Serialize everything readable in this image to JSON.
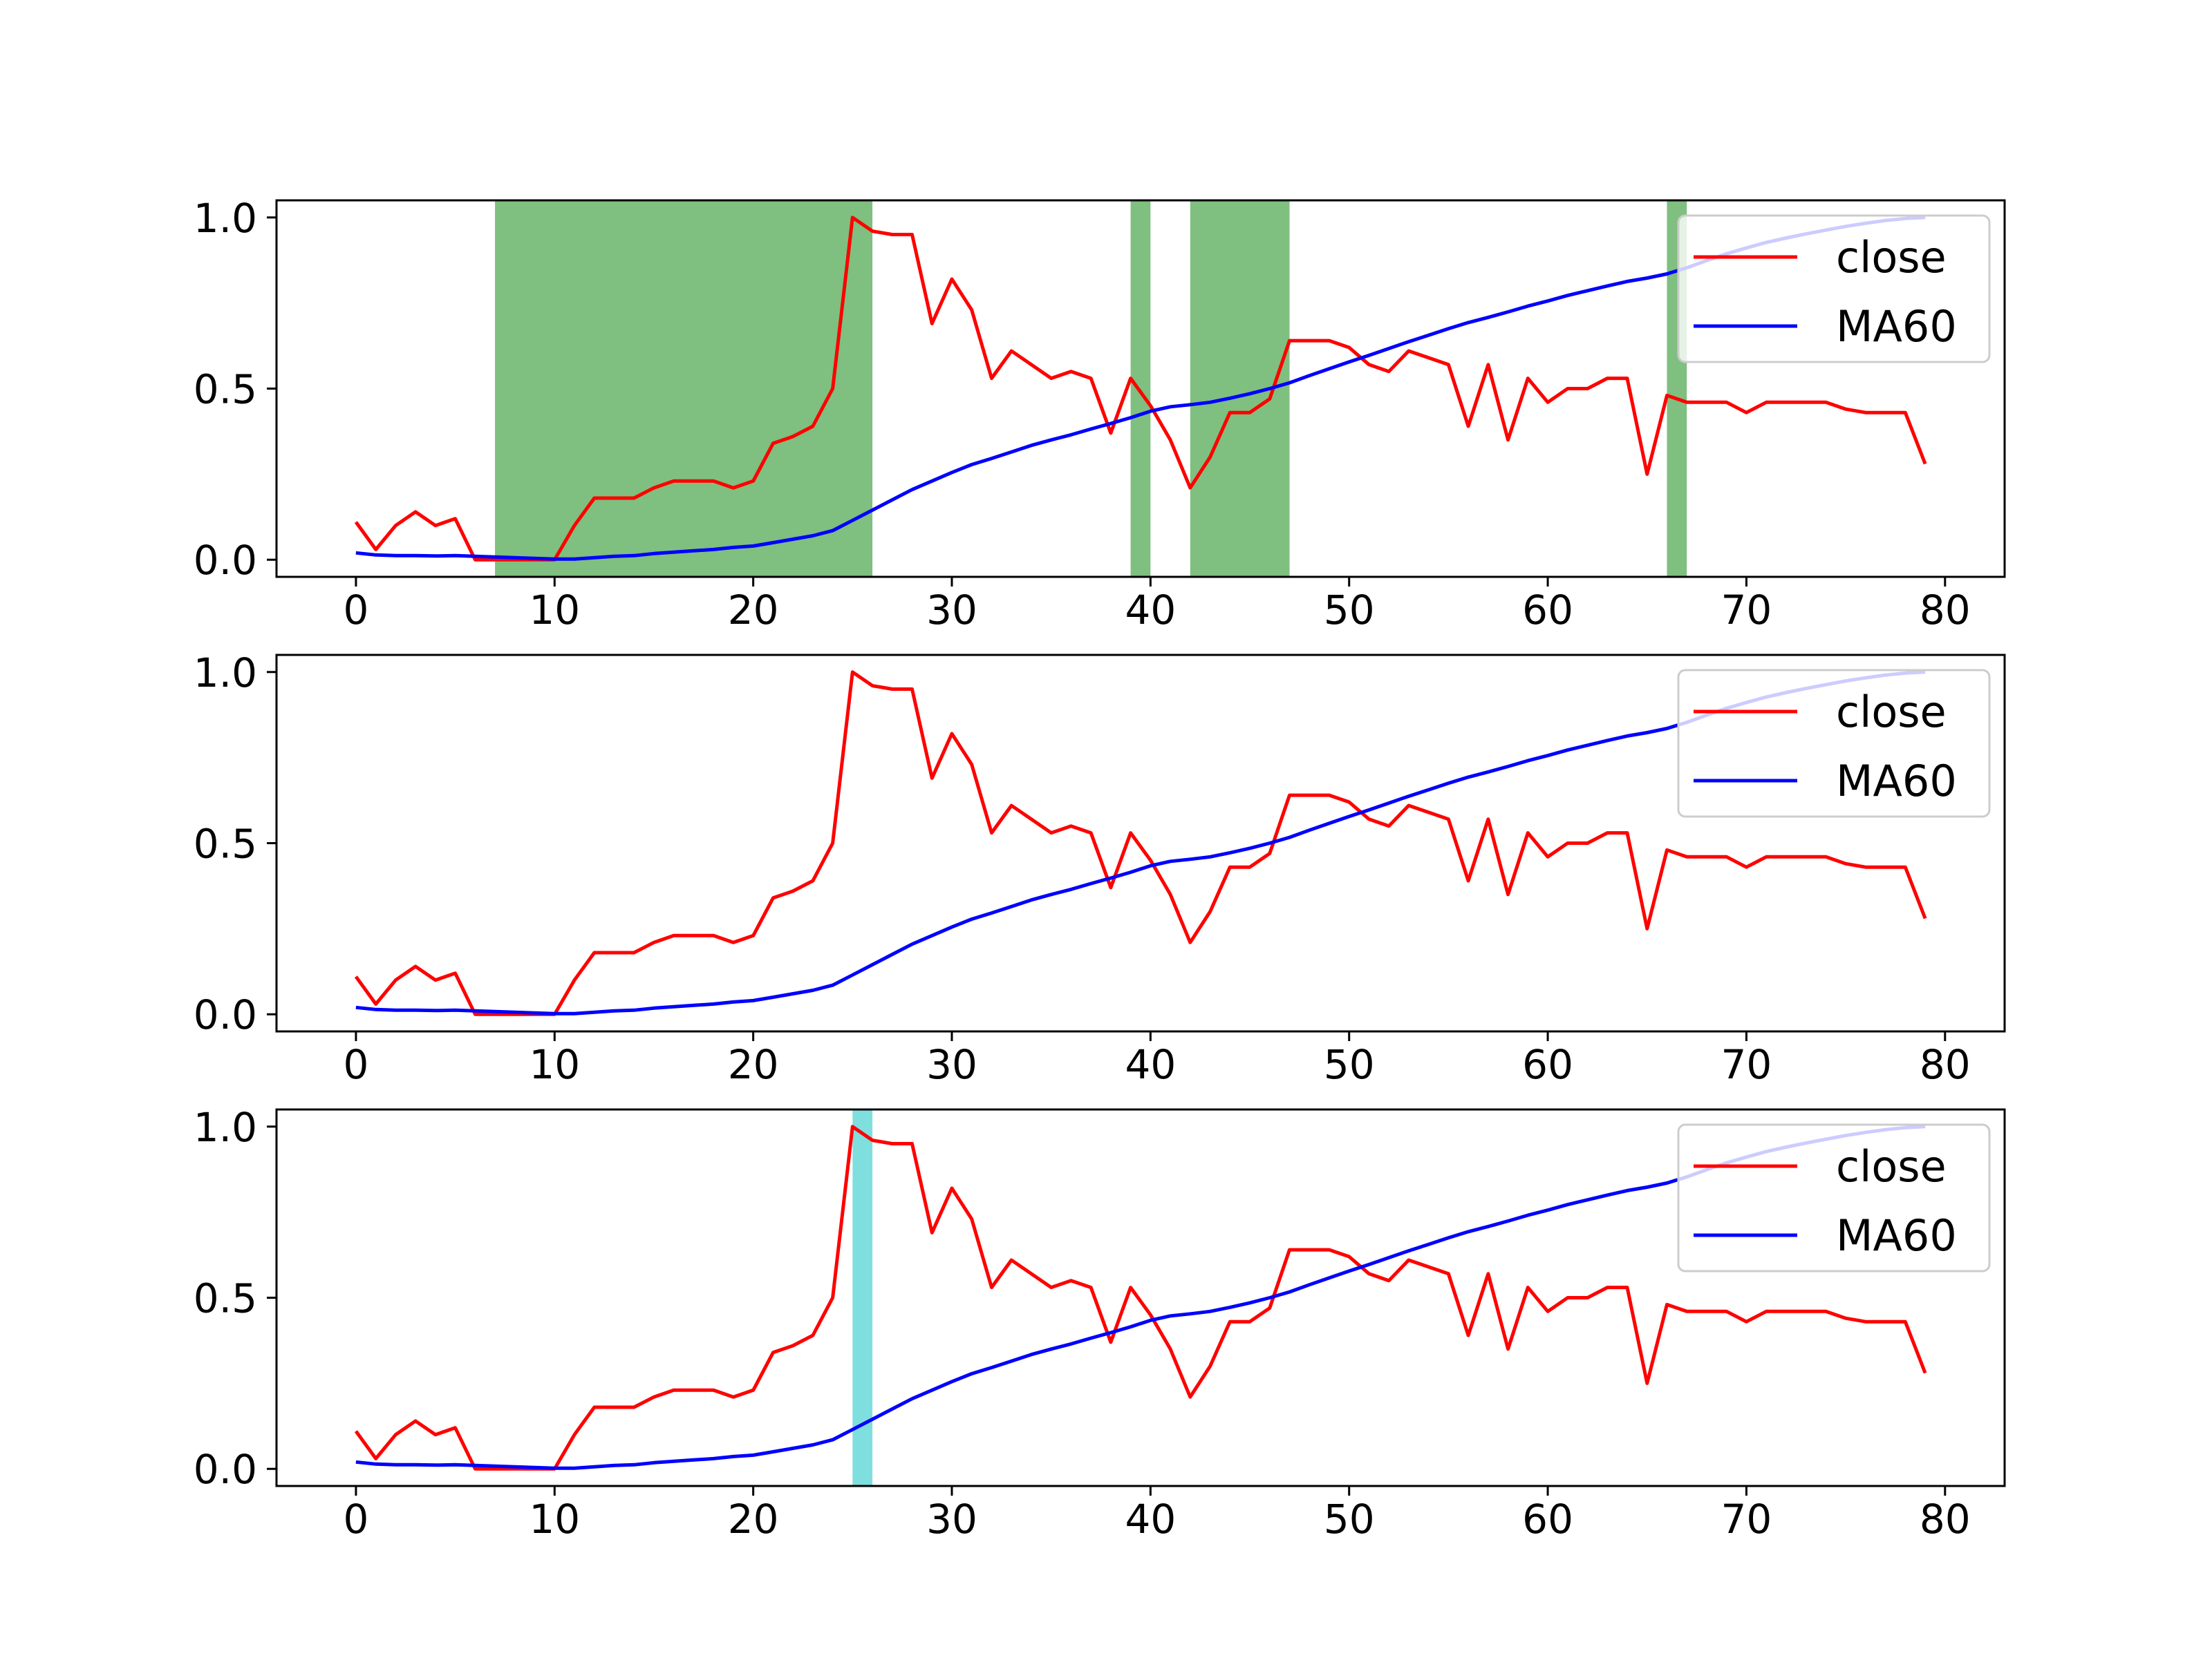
{
  "chart_data": [
    {
      "type": "line",
      "panel": 1,
      "x": [
        0,
        1,
        2,
        3,
        4,
        5,
        6,
        7,
        8,
        9,
        10,
        11,
        12,
        13,
        14,
        15,
        16,
        17,
        18,
        19,
        20,
        21,
        22,
        23,
        24,
        25,
        26,
        27,
        28,
        29,
        30,
        31,
        32,
        33,
        34,
        35,
        36,
        37,
        38,
        39,
        40,
        41,
        42,
        43,
        44,
        45,
        46,
        47,
        48,
        49,
        50,
        51,
        52,
        53,
        54,
        55,
        56,
        57,
        58,
        59,
        60,
        61,
        62,
        63,
        64,
        65,
        66,
        67,
        68,
        69,
        70,
        71,
        72,
        73,
        74,
        75,
        76,
        77,
        78,
        79
      ],
      "series": [
        {
          "name": "close",
          "color": "#ff0000",
          "values": [
            0.11,
            0.03,
            0.1,
            0.14,
            0.1,
            0.12,
            0.0,
            0.0,
            0.0,
            0.0,
            0.0,
            0.1,
            0.18,
            0.18,
            0.18,
            0.21,
            0.23,
            0.23,
            0.23,
            0.21,
            0.23,
            0.34,
            0.36,
            0.39,
            0.5,
            1.0,
            0.96,
            0.95,
            0.95,
            0.69,
            0.82,
            0.73,
            0.53,
            0.61,
            0.57,
            0.53,
            0.55,
            0.53,
            0.37,
            0.53,
            0.45,
            0.35,
            0.21,
            0.3,
            0.43,
            0.43,
            0.47,
            0.64,
            0.64,
            0.64,
            0.62,
            0.57,
            0.55,
            0.61,
            0.59,
            0.57,
            0.39,
            0.57,
            0.35,
            0.53,
            0.46,
            0.5,
            0.5,
            0.53,
            0.53,
            0.25,
            0.48,
            0.46,
            0.46,
            0.46,
            0.43,
            0.46,
            0.46,
            0.46,
            0.46,
            0.44,
            0.43,
            0.43,
            0.43,
            0.28
          ]
        },
        {
          "name": "MA60",
          "color": "#0000ff",
          "values": [
            0.02,
            0.014,
            0.012,
            0.012,
            0.011,
            0.012,
            0.01,
            0.008,
            0.006,
            0.004,
            0.002,
            0.002,
            0.006,
            0.01,
            0.012,
            0.018,
            0.022,
            0.026,
            0.03,
            0.036,
            0.04,
            0.05,
            0.06,
            0.07,
            0.085,
            0.115,
            0.145,
            0.175,
            0.205,
            0.23,
            0.255,
            0.278,
            0.296,
            0.315,
            0.334,
            0.35,
            0.365,
            0.382,
            0.398,
            0.415,
            0.434,
            0.447,
            0.453,
            0.46,
            0.472,
            0.485,
            0.5,
            0.517,
            0.538,
            0.558,
            0.578,
            0.597,
            0.617,
            0.637,
            0.656,
            0.675,
            0.693,
            0.708,
            0.724,
            0.741,
            0.756,
            0.772,
            0.786,
            0.8,
            0.813,
            0.823,
            0.835,
            0.853,
            0.874,
            0.894,
            0.911,
            0.927,
            0.94,
            0.952,
            0.963,
            0.974,
            0.983,
            0.991,
            0.997,
            1.0
          ]
        }
      ],
      "highlight_spans": [
        [
          7,
          26
        ],
        [
          39,
          40
        ],
        [
          42,
          47
        ],
        [
          66,
          67
        ]
      ],
      "highlight_color": "#008000",
      "highlight_opacity": 0.5,
      "xlim": [
        -4,
        83
      ],
      "ylim": [
        -0.05,
        1.05
      ],
      "x_ticks": [
        "0",
        "10",
        "20",
        "30",
        "40",
        "50",
        "60",
        "70",
        "80"
      ],
      "y_ticks": [
        "0.0",
        "0.5",
        "1.0"
      ],
      "legend_labels": [
        "close",
        "MA60"
      ],
      "legend_position": "upper right",
      "grid": false,
      "title": "",
      "xlabel": "",
      "ylabel": ""
    },
    {
      "type": "line",
      "panel": 2,
      "x": "same as panel 1",
      "series": "same as panel 1",
      "highlight_spans": [],
      "xlim": [
        -4,
        83
      ],
      "ylim": [
        -0.05,
        1.05
      ],
      "x_ticks": [
        "0",
        "10",
        "20",
        "30",
        "40",
        "50",
        "60",
        "70",
        "80"
      ],
      "y_ticks": [
        "0.0",
        "0.5",
        "1.0"
      ],
      "legend_labels": [
        "close",
        "MA60"
      ],
      "legend_position": "upper right",
      "grid": false,
      "title": "",
      "xlabel": "",
      "ylabel": ""
    },
    {
      "type": "line",
      "panel": 3,
      "x": "same as panel 1",
      "series": "same as panel 1",
      "highlight_spans": [
        [
          25,
          26
        ]
      ],
      "highlight_color": "#00bfbf",
      "highlight_opacity": 0.5,
      "xlim": [
        -4,
        83
      ],
      "ylim": [
        -0.05,
        1.05
      ],
      "x_ticks": [
        "0",
        "10",
        "20",
        "30",
        "40",
        "50",
        "60",
        "70",
        "80"
      ],
      "y_ticks": [
        "0.0",
        "0.5",
        "1.0"
      ],
      "legend_labels": [
        "close",
        "MA60"
      ],
      "legend_position": "upper right",
      "grid": false,
      "title": "",
      "xlabel": "",
      "ylabel": ""
    }
  ]
}
